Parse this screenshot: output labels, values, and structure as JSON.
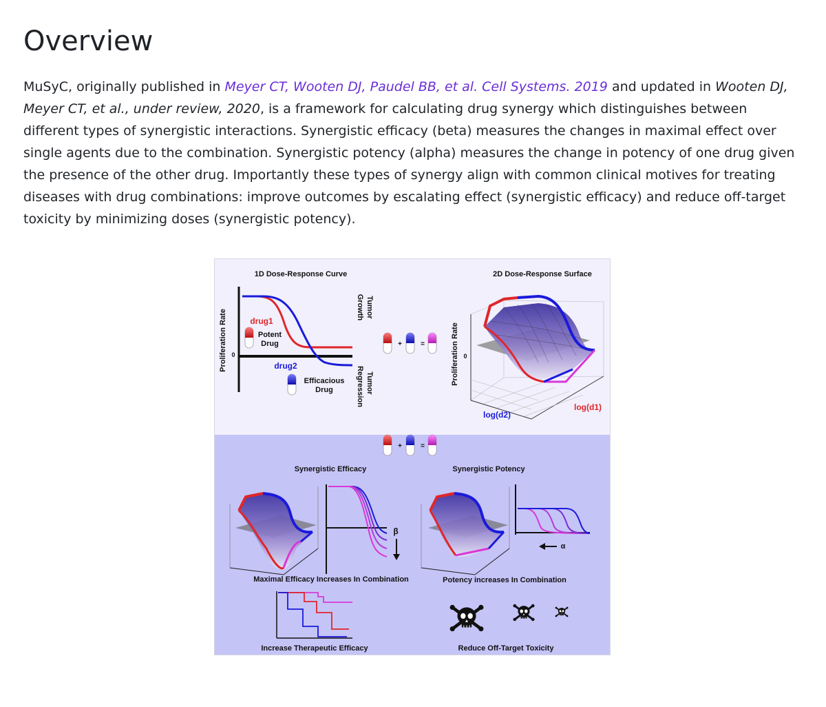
{
  "heading": "Overview",
  "paragraph": {
    "p1": "MuSyC, originally published in ",
    "link": "Meyer CT, Wooten DJ, Paudel BB, et al. Cell Systems. 2019",
    "p2": " and updated in ",
    "cite": "Wooten DJ, Meyer CT, et al., under review, 2020",
    "p3": ", is a framework for calculating drug synergy which distinguishes between different types of synergistic interactions. Synergistic efficacy (beta) measures the changes in maximal effect over single agents due to the combination. Synergistic potency (alpha) measures the change in potency of one drug given the presence of the other drug. Importantly these types of synergy align with common clinical motives for treating diseases with drug combinations: improve outcomes by escalating effect (synergistic efficacy) and reduce off-target toxicity by minimizing doses (synergistic potency)."
  },
  "figure": {
    "title_1d": "1D Dose-Response Curve",
    "title_2d": "2D Dose-Response Surface",
    "proliferation_rate": "Proliferation Rate",
    "zero": "0",
    "drug1": "drug1",
    "potent": "Potent",
    "drug": "Drug",
    "drug2": "drug2",
    "efficacious": "Efficacious",
    "tumor": "Tumor",
    "growth": "Growth",
    "regression": "Regression",
    "plus": "+",
    "equals": "=",
    "log_d2": "log(d2)",
    "log_d1": "log(d1)",
    "syn_efficacy": "Synergistic Efficacy",
    "syn_potency": "Synergistic Potency",
    "beta": "β",
    "alpha": "α",
    "max_efficacy": "Maximal Efficacy Increases In Combination",
    "potency_increases": "Potency increases In Combination",
    "increase_therapeutic": "Increase Therapeutic Efficacy",
    "reduce_toxicity": "Reduce Off-Target Toxicity",
    "colors": {
      "drug1": "#e0262a",
      "drug2": "#1a1adb",
      "combo": "#d838d8",
      "top_bg": "#f1f0fc",
      "bottom_bg": "#c5c4f7"
    }
  }
}
